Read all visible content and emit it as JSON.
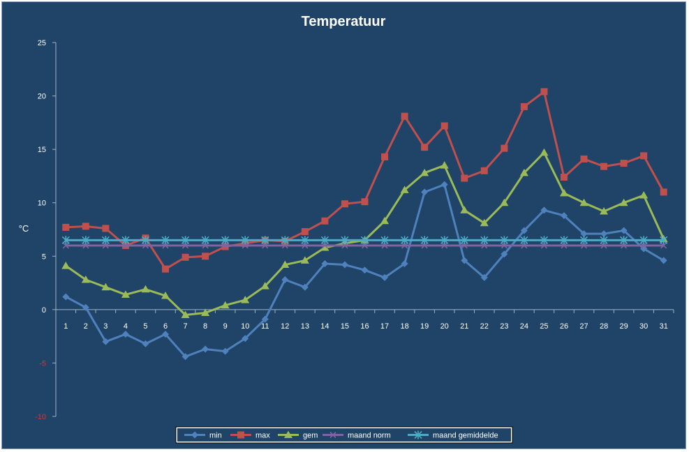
{
  "chart_data": {
    "type": "line",
    "title": "Temperatuur",
    "xlabel": "",
    "ylabel": "°C",
    "ylim": [
      -10,
      25
    ],
    "yticks": [
      25,
      20,
      15,
      10,
      5,
      0,
      -5,
      -10
    ],
    "categories": [
      "1",
      "2",
      "3",
      "4",
      "5",
      "6",
      "7",
      "8",
      "9",
      "10",
      "11",
      "12",
      "13",
      "14",
      "15",
      "16",
      "17",
      "18",
      "19",
      "20",
      "21",
      "22",
      "23",
      "24",
      "25",
      "26",
      "27",
      "28",
      "29",
      "30",
      "31"
    ],
    "grid": false,
    "legend_position": "bottom",
    "series": [
      {
        "name": "min",
        "color": "#4f81bd",
        "marker": "diamond",
        "values": [
          1.2,
          0.2,
          -3.0,
          -2.3,
          -3.2,
          -2.3,
          -4.4,
          -3.7,
          -3.9,
          -2.7,
          -0.9,
          2.8,
          2.1,
          4.3,
          4.2,
          3.7,
          3.0,
          4.3,
          11.0,
          11.7,
          4.6,
          3.0,
          5.2,
          7.4,
          9.3,
          8.8,
          7.1,
          7.1,
          7.4,
          5.7,
          4.6
        ]
      },
      {
        "name": "max",
        "color": "#c0504d",
        "marker": "square",
        "values": [
          7.7,
          7.8,
          7.6,
          6.0,
          6.7,
          3.8,
          4.9,
          5.0,
          5.9,
          6.2,
          6.5,
          6.4,
          7.3,
          8.3,
          9.9,
          10.1,
          14.3,
          18.1,
          15.2,
          17.2,
          12.3,
          13.0,
          15.1,
          19.0,
          20.4,
          12.4,
          14.1,
          13.4,
          13.7,
          14.4,
          11.0
        ]
      },
      {
        "name": "gem",
        "color": "#9bbb59",
        "marker": "triangle",
        "values": [
          4.1,
          2.8,
          2.1,
          1.4,
          1.9,
          1.3,
          -0.5,
          -0.3,
          0.4,
          0.9,
          2.2,
          4.2,
          4.6,
          5.8,
          6.2,
          6.5,
          8.3,
          11.2,
          12.8,
          13.5,
          9.3,
          8.1,
          10.0,
          12.8,
          14.7,
          10.9,
          10.0,
          9.2,
          10.0,
          10.7,
          6.6
        ]
      },
      {
        "name": "maand norm",
        "color": "#8064a2",
        "marker": "x",
        "values": [
          6.0,
          6.0,
          6.0,
          6.0,
          6.0,
          6.0,
          6.0,
          6.0,
          6.0,
          6.0,
          6.0,
          6.0,
          6.0,
          6.0,
          6.0,
          6.0,
          6.0,
          6.0,
          6.0,
          6.0,
          6.0,
          6.0,
          6.0,
          6.0,
          6.0,
          6.0,
          6.0,
          6.0,
          6.0,
          6.0,
          6.0
        ]
      },
      {
        "name": "maand gemiddelde",
        "color": "#4bacc6",
        "marker": "star",
        "values": [
          6.5,
          6.5,
          6.5,
          6.5,
          6.5,
          6.5,
          6.5,
          6.5,
          6.5,
          6.5,
          6.5,
          6.5,
          6.5,
          6.5,
          6.5,
          6.5,
          6.5,
          6.5,
          6.5,
          6.5,
          6.5,
          6.5,
          6.5,
          6.5,
          6.5,
          6.5,
          6.5,
          6.5,
          6.5,
          6.5,
          6.5
        ]
      }
    ]
  }
}
